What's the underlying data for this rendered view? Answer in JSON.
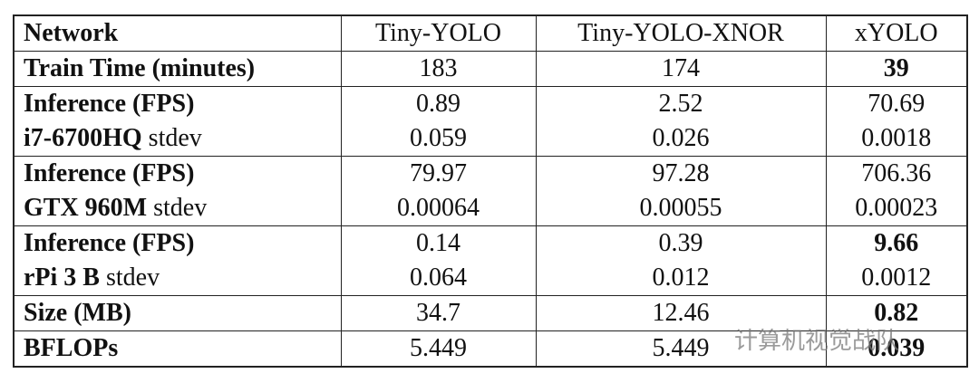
{
  "table": {
    "header": [
      "Network",
      "Tiny-YOLO",
      "Tiny-YOLO-XNOR",
      "xYOLO"
    ],
    "groups": [
      {
        "lines": [
          {
            "label": [
              "Train Time (minutes)"
            ],
            "cells": [
              "183",
              "174",
              "39"
            ],
            "bold": [
              2
            ]
          }
        ]
      },
      {
        "lines": [
          {
            "label": [
              "Inference (FPS)"
            ],
            "cells": [
              "0.89",
              "2.52",
              "70.69"
            ],
            "bold": []
          },
          {
            "label": [
              "i7-6700HQ",
              "stdev"
            ],
            "cells": [
              "0.059",
              "0.026",
              "0.0018"
            ],
            "bold": []
          }
        ]
      },
      {
        "lines": [
          {
            "label": [
              "Inference (FPS)"
            ],
            "cells": [
              "79.97",
              "97.28",
              "706.36"
            ],
            "bold": []
          },
          {
            "label": [
              "GTX 960M",
              "stdev"
            ],
            "cells": [
              "0.00064",
              "0.00055",
              "0.00023"
            ],
            "bold": []
          }
        ]
      },
      {
        "lines": [
          {
            "label": [
              "Inference (FPS)"
            ],
            "cells": [
              "0.14",
              "0.39",
              "9.66"
            ],
            "bold": [
              2
            ]
          },
          {
            "label": [
              "rPi 3 B",
              "stdev"
            ],
            "cells": [
              "0.064",
              "0.012",
              "0.0012"
            ],
            "bold": []
          }
        ]
      },
      {
        "lines": [
          {
            "label": [
              "Size (MB)"
            ],
            "cells": [
              "34.7",
              "12.46",
              "0.82"
            ],
            "bold": [
              2
            ]
          }
        ]
      },
      {
        "lines": [
          {
            "label": [
              "BFLOPs"
            ],
            "cells": [
              "5.449",
              "5.449",
              "0.039"
            ],
            "bold": [
              2
            ]
          }
        ]
      }
    ]
  },
  "watermark": "计算机视觉战队"
}
